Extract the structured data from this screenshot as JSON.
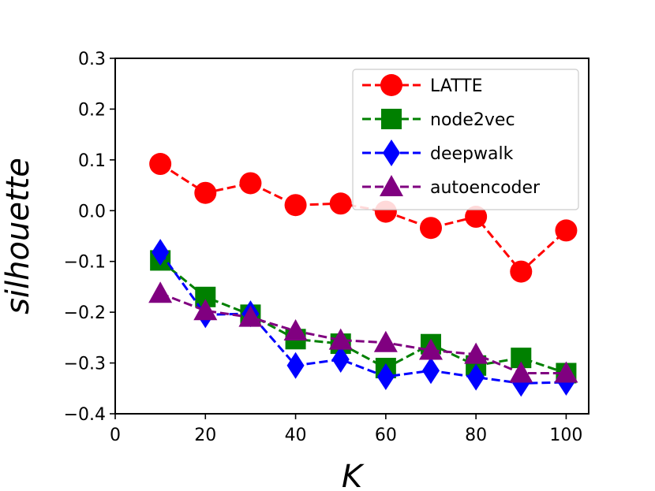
{
  "chart_data": {
    "type": "line",
    "title": "",
    "xlabel": "K",
    "ylabel": "silhouette",
    "xlim": [
      0,
      105
    ],
    "ylim": [
      -0.4,
      0.3
    ],
    "xticks": [
      0,
      20,
      40,
      60,
      80,
      100
    ],
    "xtick_labels": [
      "0",
      "20",
      "40",
      "60",
      "80",
      "100"
    ],
    "yticks": [
      -0.4,
      -0.3,
      -0.2,
      -0.1,
      0.0,
      0.1,
      0.2,
      0.3
    ],
    "ytick_labels": [
      "−0.4",
      "−0.3",
      "−0.2",
      "−0.1",
      "0.0",
      "0.1",
      "0.2",
      "0.3"
    ],
    "grid": false,
    "legend_position": "top-right",
    "x": [
      10,
      20,
      30,
      40,
      50,
      60,
      70,
      80,
      90,
      100
    ],
    "series": [
      {
        "name": "LATTE",
        "color": "#ff0000",
        "marker": "circle",
        "values": [
          0.092,
          0.035,
          0.054,
          0.011,
          0.014,
          -0.002,
          -0.034,
          -0.012,
          -0.12,
          -0.039
        ]
      },
      {
        "name": "node2vec",
        "color": "#008000",
        "marker": "square",
        "values": [
          -0.098,
          -0.17,
          -0.205,
          -0.253,
          -0.262,
          -0.31,
          -0.263,
          -0.305,
          -0.29,
          -0.32
        ]
      },
      {
        "name": "deepwalk",
        "color": "#0000ff",
        "marker": "diamond",
        "values": [
          -0.082,
          -0.205,
          -0.203,
          -0.305,
          -0.293,
          -0.327,
          -0.315,
          -0.328,
          -0.34,
          -0.338
        ]
      },
      {
        "name": "autoencoder",
        "color": "#800080",
        "marker": "triangle",
        "values": [
          -0.163,
          -0.197,
          -0.21,
          -0.237,
          -0.255,
          -0.26,
          -0.275,
          -0.283,
          -0.32,
          -0.32
        ]
      }
    ]
  }
}
